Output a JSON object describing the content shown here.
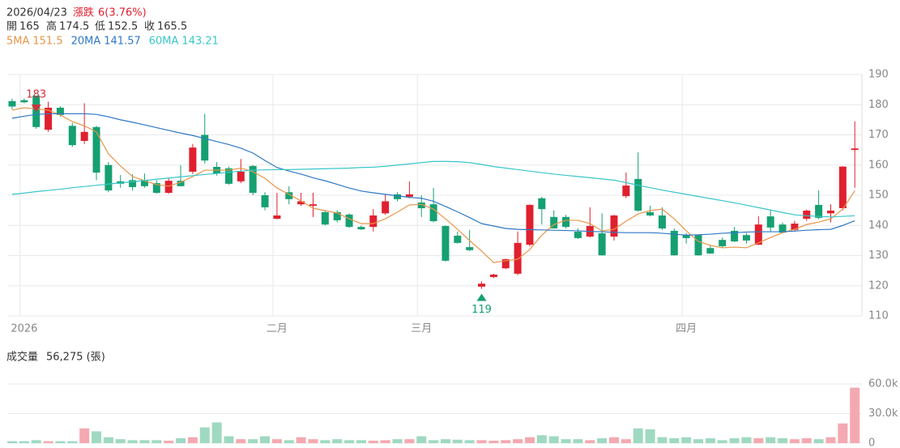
{
  "header": {
    "date": "2026/04/23",
    "change_label": "漲跌",
    "change": "6(3.76%)",
    "open_label": "開",
    "open": 165,
    "high_label": "高",
    "high": 174.5,
    "low_label": "低",
    "low": 152.5,
    "close_label": "收",
    "close": 165.5
  },
  "chart_data": {
    "type": "candlestick",
    "open": [
      181.2,
      181.5,
      183,
      171.7,
      179,
      173,
      168,
      172.6,
      160,
      154.6,
      155,
      155,
      154,
      150.8,
      154.8,
      157.8,
      170,
      159.4,
      158.9,
      154.6,
      159.7,
      150,
      142.2,
      151,
      147,
      146.5,
      144.4,
      144.4,
      143.6,
      139.5,
      139.5,
      144,
      150.3,
      149.5,
      147.6,
      147,
      139.8,
      136.6,
      132.8,
      119.7,
      122.9,
      125.8,
      124,
      133.6,
      149,
      142.8,
      142.8,
      137.9,
      136.3,
      137.4,
      136.3,
      149.7,
      155.4,
      144.4,
      143.3,
      138.2,
      136.8,
      136.8,
      132.5,
      135.2,
      138.2,
      136.8,
      133.6,
      143,
      140.3,
      138.5,
      142.2,
      146.8,
      144,
      145.7,
      165
    ],
    "high": [
      182,
      182,
      183,
      181,
      179.5,
      174,
      180.5,
      173,
      161,
      156.7,
      157,
      157.2,
      155,
      155.5,
      160,
      167,
      177,
      161,
      159.5,
      162,
      160,
      151,
      150.8,
      153,
      150.8,
      150.8,
      145,
      145,
      144,
      140,
      145.4,
      150.3,
      151,
      154.6,
      150,
      152.4,
      140,
      138,
      138.5,
      121.5,
      124,
      129,
      138,
      147,
      149.5,
      145,
      143.5,
      139,
      146,
      144,
      143.5,
      157.5,
      164.2,
      146.5,
      146,
      139,
      137.5,
      137,
      133.5,
      136,
      139.5,
      137.5,
      143,
      145.2,
      141,
      141.5,
      145.3,
      151.6,
      147,
      159.6,
      174.5
    ],
    "low": [
      178.5,
      180.5,
      172,
      171,
      176,
      166,
      167,
      155,
      151,
      152.5,
      151.5,
      152.5,
      150.5,
      150.5,
      153,
      157,
      160.5,
      156.5,
      153.5,
      154,
      150,
      145,
      142,
      147,
      146.5,
      142.8,
      140,
      141,
      139.2,
      138.5,
      138,
      143.5,
      148,
      149,
      142.8,
      141,
      128,
      134,
      131.5,
      119,
      122.5,
      125.5,
      123.5,
      133,
      140.3,
      139,
      139,
      135.5,
      136,
      130,
      135,
      149,
      144.5,
      143,
      138.5,
      130,
      134,
      130,
      130.5,
      132.5,
      134.5,
      134,
      133.5,
      138,
      137.3,
      138,
      141.5,
      142,
      141,
      145,
      152.5
    ],
    "close": [
      179.4,
      180.8,
      172.6,
      179,
      176.6,
      166.6,
      171,
      157.5,
      151.6,
      153.8,
      152.7,
      153,
      150.8,
      154.8,
      153,
      165.8,
      161.5,
      157.2,
      153.8,
      157.8,
      150.8,
      146,
      143.3,
      148.7,
      148,
      147,
      140.3,
      141.7,
      139.5,
      138.7,
      143.3,
      148,
      148.7,
      150.3,
      145.7,
      141.4,
      128.3,
      134.2,
      131.8,
      120.7,
      123.7,
      128.8,
      134.2,
      146.8,
      145.4,
      139,
      139.5,
      135.8,
      139.8,
      130.1,
      143.3,
      153.2,
      144.9,
      143.3,
      139,
      130.1,
      135.8,
      130.1,
      130.7,
      133.1,
      134.7,
      135,
      140.3,
      139.3,
      137.6,
      140.6,
      144.9,
      142.5,
      144.9,
      159.5,
      165.5
    ],
    "series": [
      {
        "name": "5MA",
        "color": "#e8964a",
        "values": [
          178.2,
          179,
          178.6,
          178.2,
          176.6,
          174.4,
          173,
          171,
          163.7,
          159.7,
          156.2,
          154.8,
          153.5,
          153,
          154.3,
          156.2,
          158.3,
          158.3,
          158.3,
          159,
          157.8,
          155.6,
          152.4,
          150.3,
          148.1,
          145.7,
          144.9,
          144.1,
          142.2,
          140.6,
          140.6,
          142.2,
          144.4,
          146.8,
          147,
          145.4,
          142.2,
          138.7,
          135,
          131.5,
          127.7,
          128.3,
          128.8,
          132,
          136.8,
          140.3,
          141.7,
          141.7,
          140.6,
          138.2,
          138.7,
          141.4,
          143.8,
          144.9,
          145.4,
          142.2,
          138.2,
          134.7,
          133.4,
          132.6,
          132.8,
          132.6,
          134.2,
          136,
          137.6,
          138.7,
          140.3,
          141.1,
          142.2,
          145.4,
          151.5
        ]
      },
      {
        "name": "20MA",
        "color": "#2f78c4",
        "values": [
          175.5,
          176.2,
          176.8,
          177,
          177,
          177,
          177,
          176.8,
          176,
          175,
          174.2,
          173.3,
          172.4,
          171.5,
          170.6,
          169.8,
          168.8,
          167.8,
          166.8,
          165.6,
          164,
          161.5,
          159.2,
          158,
          157,
          155.8,
          154.8,
          153.6,
          152.4,
          151.4,
          150.8,
          150.3,
          149.8,
          149.3,
          149,
          148,
          146.3,
          144.5,
          142.6,
          140.6,
          139.8,
          139,
          138.7,
          138.6,
          138.5,
          138.4,
          138.3,
          138.2,
          138,
          137.9,
          137.7,
          137.6,
          137.6,
          137.6,
          137.4,
          137.1,
          136.8,
          136.9,
          137.1,
          137.4,
          137.6,
          137.8,
          137.9,
          137.9,
          137.9,
          138.1,
          138.4,
          138.6,
          138.7,
          140,
          141.57
        ]
      },
      {
        "name": "60MA",
        "color": "#39c6c9",
        "values": [
          150.3,
          150.7,
          151.2,
          151.6,
          152,
          152.5,
          152.9,
          153.3,
          153.7,
          154.1,
          154.5,
          154.9,
          155.3,
          155.7,
          156.1,
          156.5,
          156.9,
          157.2,
          157.6,
          158,
          158.3,
          158.4,
          158.5,
          158.5,
          158.6,
          158.7,
          158.8,
          158.9,
          159,
          159.2,
          159.3,
          159.6,
          160,
          160.4,
          160.8,
          161.2,
          161.2,
          161.1,
          160.8,
          160.2,
          159.5,
          159,
          158.5,
          158,
          157.5,
          157,
          156.6,
          156.2,
          155.8,
          155.4,
          155,
          154.2,
          153.3,
          152.5,
          151.7,
          151,
          150.3,
          149.6,
          148.9,
          148.2,
          147.5,
          146.7,
          145.9,
          145.1,
          144.3,
          143.5,
          143.2,
          143,
          142.8,
          143,
          143.21
        ]
      }
    ],
    "up_color": "#e0202e",
    "down_color": "#15a072",
    "up_volume_color": "#f4a9b0",
    "down_volume_color": "#9fd9c2",
    "ylim": [
      110,
      190
    ],
    "yticks": [
      110,
      120,
      130,
      140,
      150,
      160,
      170,
      180,
      190
    ],
    "xticks": [
      {
        "value": 1,
        "label": "2026"
      },
      {
        "value": 22,
        "label": "二月"
      },
      {
        "value": 34,
        "label": "三月"
      },
      {
        "value": 56,
        "label": "四月"
      }
    ],
    "max_label": 183,
    "min_label": 119,
    "volume_title": "成交量",
    "volume_text": "56,275 (張)",
    "volume": [
      2000,
      2000,
      3000,
      2000,
      2000,
      2000,
      15000,
      12000,
      6000,
      4000,
      3000,
      3000,
      3000,
      2500,
      5000,
      6000,
      16000,
      21000,
      7000,
      4000,
      4000,
      7000,
      4000,
      3000,
      6000,
      4000,
      3000,
      4000,
      3000,
      3000,
      2500,
      3000,
      4000,
      4000,
      7000,
      3000,
      4000,
      3500,
      3000,
      3000,
      2500,
      3000,
      4000,
      6000,
      8000,
      7000,
      4000,
      4000,
      3000,
      5000,
      6000,
      4000,
      15000,
      14000,
      6000,
      5000,
      6000,
      4000,
      5000,
      3000,
      5000,
      6000,
      5000,
      6000,
      5000,
      4000,
      5000,
      4000,
      6000,
      20000,
      56275
    ],
    "volume_ylim": [
      0,
      60000
    ],
    "volume_yticks": [
      0,
      {
        "value": 30000,
        "label": "30.0k"
      },
      {
        "value": 60000,
        "label": "60.0k"
      }
    ],
    "grid": true
  }
}
